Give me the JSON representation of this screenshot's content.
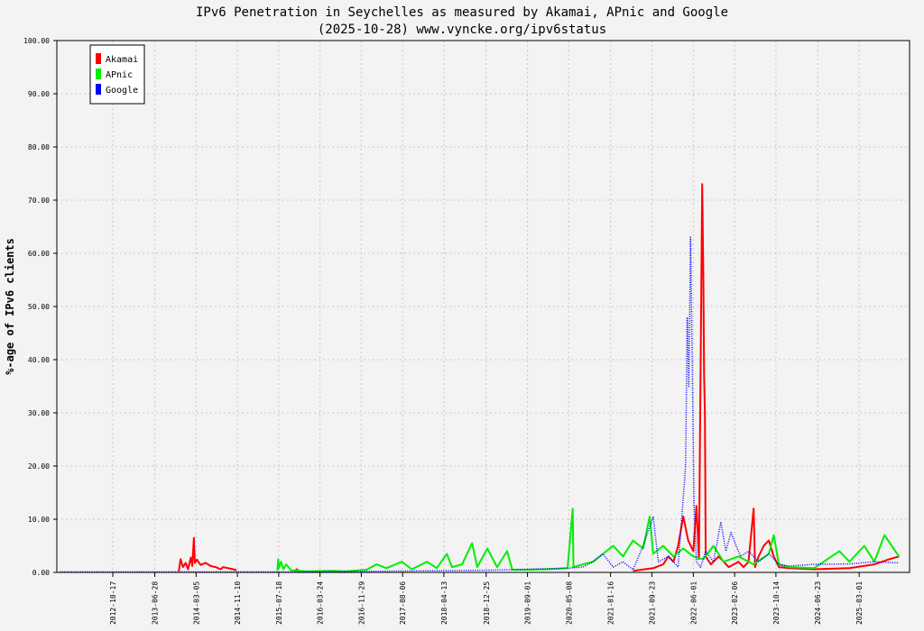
{
  "chart_data": {
    "type": "line",
    "title": "IPv6 Penetration in Seychelles as measured by Akamai, APnic and Google",
    "subtitle": "(2025-10-28) www.vyncke.org/ipv6status",
    "xlabel": "",
    "ylabel": "%-age of IPv6 clients",
    "ylim": [
      0,
      100
    ],
    "xlim": [
      "2011-11-13",
      "2025-12-31"
    ],
    "grid": true,
    "legend_position": "top-left",
    "y_ticks": [
      "0.00",
      "10.00",
      "20.00",
      "30.00",
      "40.00",
      "50.00",
      "60.00",
      "70.00",
      "80.00",
      "90.00",
      "100.00"
    ],
    "x_ticks": [
      "2012-10-17",
      "2013-06-28",
      "2014-03-05",
      "2014-11-10",
      "2015-07-18",
      "2016-03-24",
      "2016-11-29",
      "2017-08-06",
      "2018-04-13",
      "2018-12-25",
      "2019-09-01",
      "2020-05-08",
      "2021-01-16",
      "2021-09-23",
      "2022-06-01",
      "2023-02-06",
      "2023-10-14",
      "2024-06-23",
      "2025-03-01"
    ],
    "series": [
      {
        "name": "Akamai",
        "color": "#ff0000",
        "style": "solid",
        "points": [
          [
            "2013-11-20",
            0.2
          ],
          [
            "2013-12-01",
            2.5
          ],
          [
            "2013-12-15",
            1.0
          ],
          [
            "2014-01-01",
            1.8
          ],
          [
            "2014-01-15",
            0.6
          ],
          [
            "2014-02-01",
            2.8
          ],
          [
            "2014-02-10",
            1.2
          ],
          [
            "2014-02-20",
            6.5
          ],
          [
            "2014-02-25",
            1.8
          ],
          [
            "2014-03-10",
            2.4
          ],
          [
            "2014-04-01",
            1.4
          ],
          [
            "2014-05-01",
            1.8
          ],
          [
            "2014-06-01",
            1.2
          ],
          [
            "2014-07-01",
            1.0
          ],
          [
            "2014-08-01",
            0.6
          ],
          [
            "2014-08-15",
            1.0
          ],
          [
            "2014-09-15",
            0.8
          ],
          [
            "2014-10-15",
            0.6
          ],
          [
            "2014-11-05",
            0.4
          ],
          [
            "2014-11-06",
            null
          ],
          [
            "2015-10-20",
            0.2
          ],
          [
            "2015-11-05",
            0.6
          ],
          [
            "2015-11-20",
            0.1
          ],
          [
            "2015-11-21",
            null
          ],
          [
            "2021-06-01",
            0.3
          ],
          [
            "2021-10-01",
            0.8
          ],
          [
            "2021-12-01",
            1.5
          ],
          [
            "2022-01-01",
            3.0
          ],
          [
            "2022-02-01",
            2.0
          ],
          [
            "2022-03-01",
            5.0
          ],
          [
            "2022-04-01",
            10.5
          ],
          [
            "2022-05-01",
            6.0
          ],
          [
            "2022-06-01",
            4.0
          ],
          [
            "2022-06-20",
            12.5
          ],
          [
            "2022-07-05",
            2.5
          ],
          [
            "2022-07-25",
            73.0
          ],
          [
            "2022-08-01",
            55.0
          ],
          [
            "2022-08-05",
            37.0
          ],
          [
            "2022-08-10",
            30.0
          ],
          [
            "2022-08-15",
            3.0
          ],
          [
            "2022-09-15",
            1.5
          ],
          [
            "2022-11-01",
            3.0
          ],
          [
            "2023-01-01",
            1.0
          ],
          [
            "2023-03-01",
            2.0
          ],
          [
            "2023-04-01",
            1.0
          ],
          [
            "2023-05-01",
            2.0
          ],
          [
            "2023-06-01",
            12.0
          ],
          [
            "2023-06-10",
            1.0
          ],
          [
            "2023-07-01",
            3.0
          ],
          [
            "2023-08-01",
            5.0
          ],
          [
            "2023-09-01",
            6.0
          ],
          [
            "2023-10-01",
            3.0
          ],
          [
            "2023-11-01",
            1.0
          ],
          [
            "2024-01-01",
            0.8
          ],
          [
            "2024-06-01",
            0.6
          ],
          [
            "2025-01-01",
            0.8
          ],
          [
            "2025-06-01",
            1.5
          ],
          [
            "2025-09-01",
            2.5
          ],
          [
            "2025-10-28",
            3.0
          ]
        ]
      },
      {
        "name": "APnic",
        "color": "#00ee00",
        "style": "solid",
        "points": [
          [
            "2015-07-10",
            0.3
          ],
          [
            "2015-07-15",
            2.5
          ],
          [
            "2015-07-20",
            0.8
          ],
          [
            "2015-08-01",
            2.0
          ],
          [
            "2015-08-15",
            0.6
          ],
          [
            "2015-09-01",
            1.5
          ],
          [
            "2015-10-01",
            0.4
          ],
          [
            "2016-01-01",
            0.2
          ],
          [
            "2016-06-01",
            0.3
          ],
          [
            "2016-09-01",
            0.2
          ],
          [
            "2017-01-01",
            0.5
          ],
          [
            "2017-03-01",
            1.5
          ],
          [
            "2017-05-01",
            0.8
          ],
          [
            "2017-08-01",
            2.0
          ],
          [
            "2017-10-01",
            0.6
          ],
          [
            "2018-01-01",
            2.0
          ],
          [
            "2018-03-01",
            0.8
          ],
          [
            "2018-05-01",
            3.5
          ],
          [
            "2018-06-01",
            1.0
          ],
          [
            "2018-08-01",
            1.5
          ],
          [
            "2018-10-01",
            5.5
          ],
          [
            "2018-11-01",
            1.0
          ],
          [
            "2019-01-01",
            4.5
          ],
          [
            "2019-03-01",
            1.0
          ],
          [
            "2019-05-01",
            4.0
          ],
          [
            "2019-06-01",
            0.5
          ],
          [
            "2019-09-01",
            0.5
          ],
          [
            "2020-01-01",
            0.6
          ],
          [
            "2020-05-01",
            0.8
          ],
          [
            "2020-06-01",
            12.0
          ],
          [
            "2020-06-05",
            1.0
          ],
          [
            "2020-08-01",
            1.5
          ],
          [
            "2020-10-01",
            2.0
          ],
          [
            "2020-12-01",
            3.5
          ],
          [
            "2021-02-01",
            5.0
          ],
          [
            "2021-04-01",
            3.0
          ],
          [
            "2021-06-01",
            6.0
          ],
          [
            "2021-08-01",
            4.5
          ],
          [
            "2021-09-10",
            10.5
          ],
          [
            "2021-10-01",
            3.5
          ],
          [
            "2021-12-01",
            5.0
          ],
          [
            "2022-02-01",
            3.0
          ],
          [
            "2022-04-01",
            4.5
          ],
          [
            "2022-06-01",
            3.0
          ],
          [
            "2022-08-01",
            2.5
          ],
          [
            "2022-10-01",
            5.0
          ],
          [
            "2022-12-01",
            2.0
          ],
          [
            "2023-03-01",
            3.0
          ],
          [
            "2023-06-01",
            1.5
          ],
          [
            "2023-09-01",
            3.5
          ],
          [
            "2023-10-01",
            7.0
          ],
          [
            "2023-11-01",
            1.5
          ],
          [
            "2024-01-01",
            1.0
          ],
          [
            "2024-06-01",
            0.8
          ],
          [
            "2024-11-01",
            4.0
          ],
          [
            "2025-01-01",
            2.0
          ],
          [
            "2025-04-01",
            5.0
          ],
          [
            "2025-06-01",
            2.0
          ],
          [
            "2025-08-01",
            7.0
          ],
          [
            "2025-10-28",
            3.0
          ]
        ]
      },
      {
        "name": "Google",
        "color": "#0000ff",
        "style": "dotted",
        "points": [
          [
            "2011-12-01",
            0.1
          ],
          [
            "2013-01-01",
            0.1
          ],
          [
            "2014-01-01",
            0.1
          ],
          [
            "2015-01-01",
            0.1
          ],
          [
            "2016-01-01",
            0.1
          ],
          [
            "2017-01-01",
            0.2
          ],
          [
            "2018-01-01",
            0.3
          ],
          [
            "2019-01-01",
            0.4
          ],
          [
            "2019-09-01",
            0.6
          ],
          [
            "2020-05-01",
            0.8
          ],
          [
            "2020-08-01",
            1.0
          ],
          [
            "2020-10-01",
            2.0
          ],
          [
            "2020-12-01",
            3.5
          ],
          [
            "2021-02-01",
            1.0
          ],
          [
            "2021-04-01",
            2.0
          ],
          [
            "2021-06-01",
            0.5
          ],
          [
            "2021-08-01",
            5.0
          ],
          [
            "2021-10-01",
            10.5
          ],
          [
            "2021-11-01",
            2.0
          ],
          [
            "2022-01-01",
            3.0
          ],
          [
            "2022-03-01",
            1.0
          ],
          [
            "2022-04-15",
            20.0
          ],
          [
            "2022-04-25",
            48.0
          ],
          [
            "2022-05-05",
            35.0
          ],
          [
            "2022-05-15",
            63.0
          ],
          [
            "2022-05-25",
            40.0
          ],
          [
            "2022-06-05",
            13.0
          ],
          [
            "2022-06-20",
            2.0
          ],
          [
            "2022-07-15",
            1.0
          ],
          [
            "2022-08-15",
            4.0
          ],
          [
            "2022-10-01",
            2.0
          ],
          [
            "2022-11-15",
            9.5
          ],
          [
            "2022-12-15",
            4.0
          ],
          [
            "2023-01-15",
            7.5
          ],
          [
            "2023-02-15",
            5.0
          ],
          [
            "2023-03-15",
            3.0
          ],
          [
            "2023-05-01",
            4.0
          ],
          [
            "2023-07-01",
            2.0
          ],
          [
            "2023-09-01",
            3.5
          ],
          [
            "2023-11-01",
            1.5
          ],
          [
            "2024-01-01",
            1.2
          ],
          [
            "2024-06-01",
            1.5
          ],
          [
            "2025-01-01",
            1.6
          ],
          [
            "2025-06-01",
            2.0
          ],
          [
            "2025-10-28",
            1.8
          ]
        ]
      }
    ]
  }
}
